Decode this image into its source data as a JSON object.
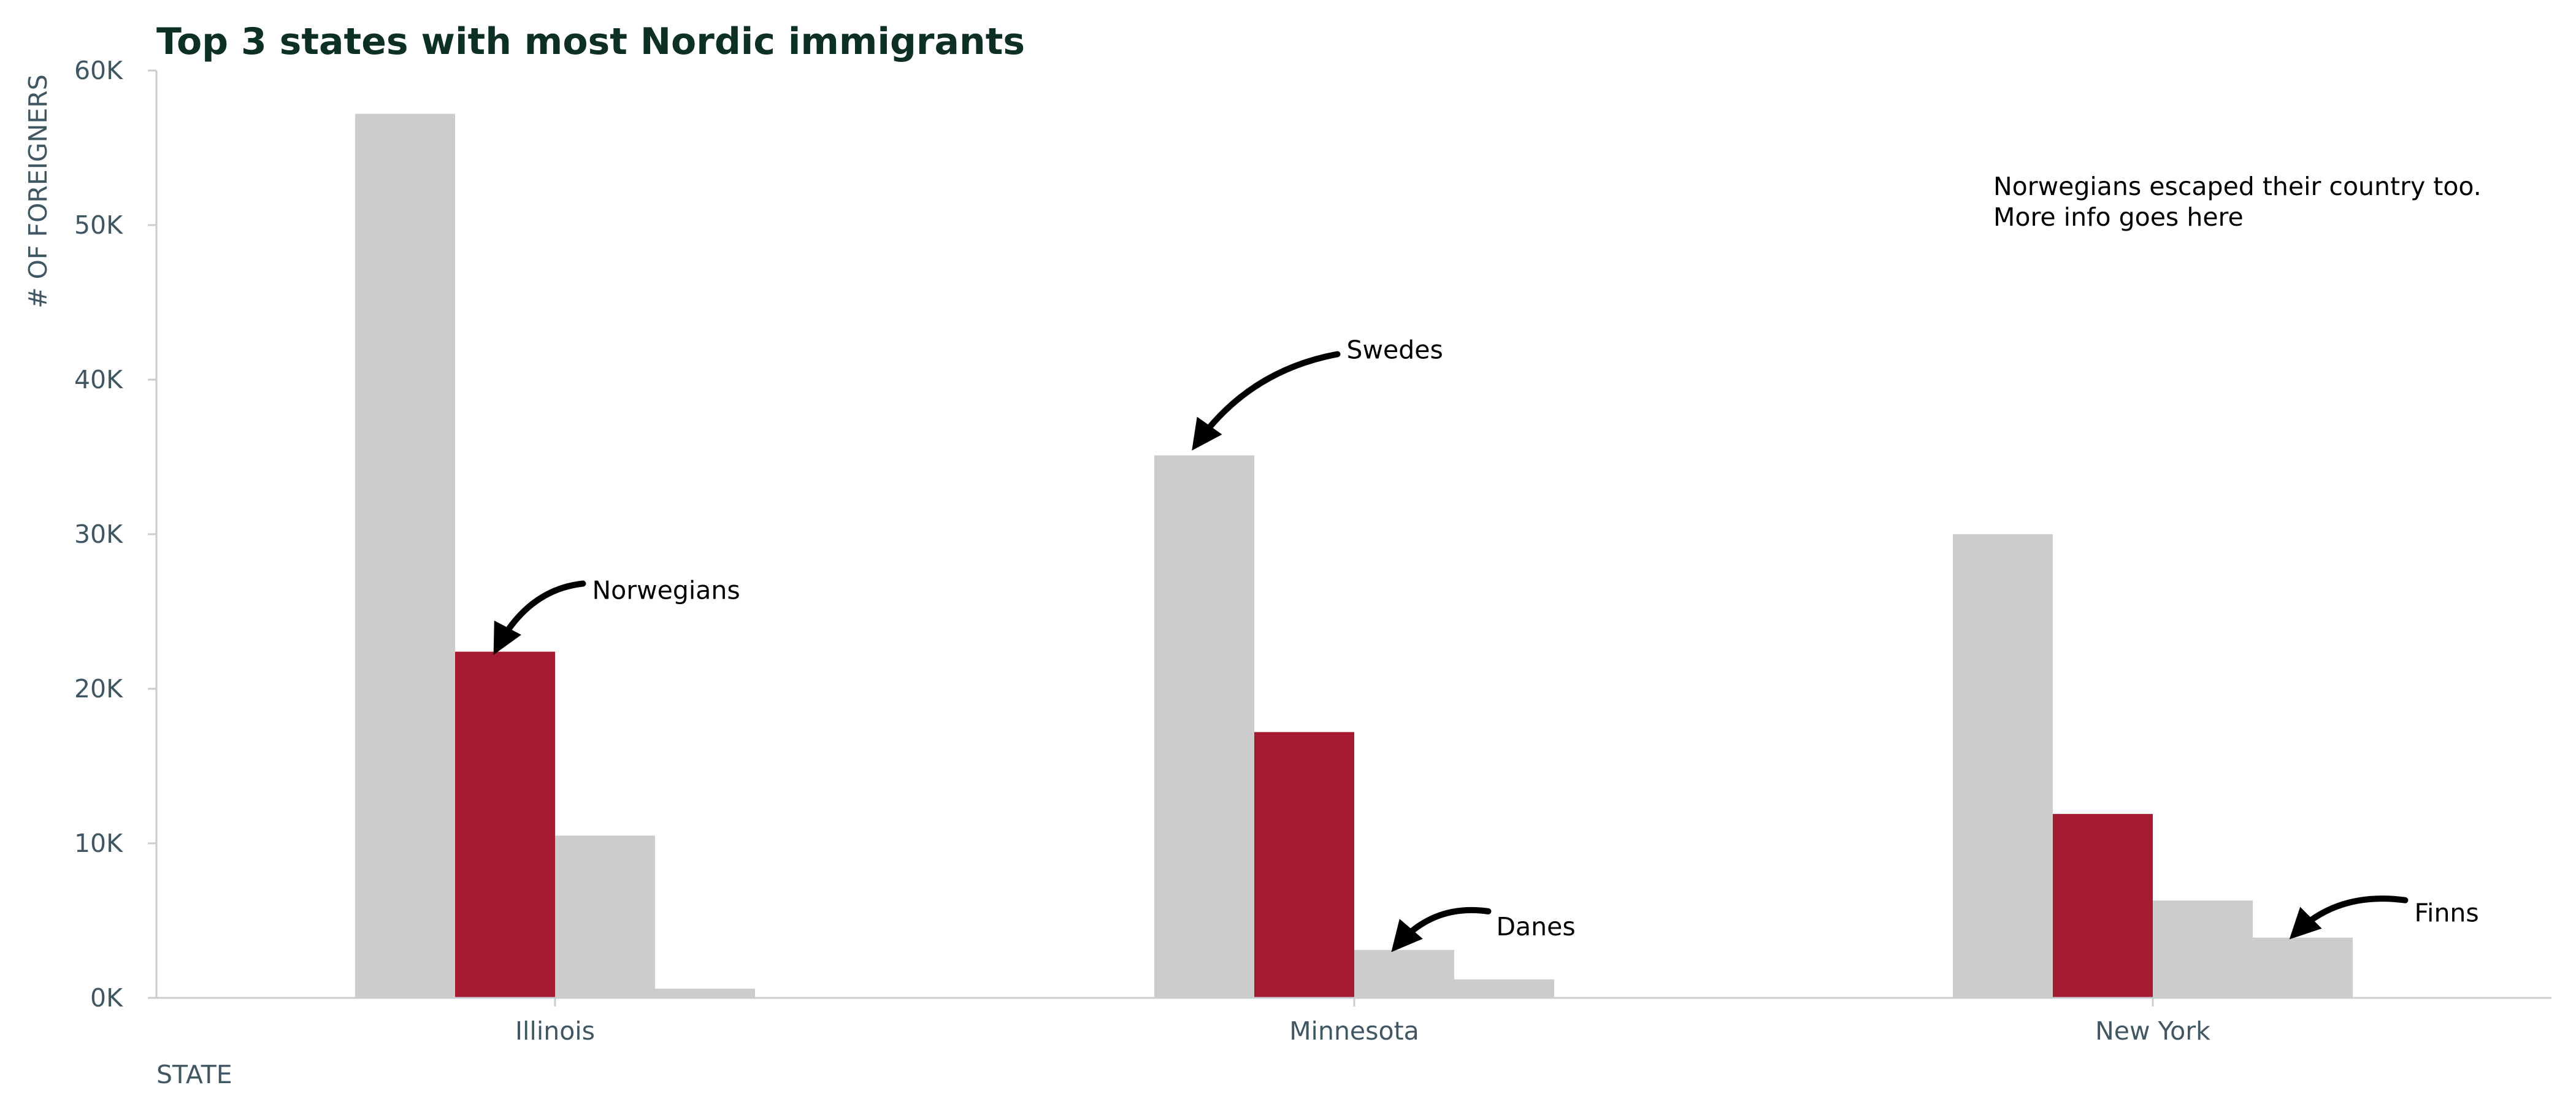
{
  "chart_data": {
    "type": "bar",
    "title": "Top 3 states with most Nordic immigrants",
    "xlabel": "STATE",
    "ylabel": "# OF FOREIGNERS",
    "categories": [
      "Illinois",
      "Minnesota",
      "New York"
    ],
    "series": [
      {
        "values": [
          57200,
          35100,
          30000
        ],
        "color": "#cccccc"
      },
      {
        "values": [
          22400,
          17200,
          11900
        ],
        "color": "#a51931"
      },
      {
        "values": [
          10500,
          3100,
          6300
        ],
        "color": "#cccccc"
      },
      {
        "values": [
          600,
          1200,
          3900
        ],
        "color": "#cccccc"
      }
    ],
    "ylim": [
      0,
      60000
    ],
    "yticks": [
      0,
      10000,
      20000,
      30000,
      40000,
      50000,
      60000
    ],
    "ytick_labels": [
      "0K",
      "10K",
      "20K",
      "30K",
      "40K",
      "50K",
      "60K"
    ],
    "grid": false,
    "annotations": [
      {
        "text": "Norwegians",
        "category": "Illinois",
        "series_index": 1
      },
      {
        "text": "Swedes",
        "category": "Minnesota",
        "series_index": 0
      },
      {
        "text": "Danes",
        "category": "Minnesota",
        "series_index": 2
      },
      {
        "text": "Finns",
        "category": "New York",
        "series_index": 3
      }
    ],
    "note": [
      "Norwegians escaped their country too.",
      "More info goes here"
    ]
  }
}
